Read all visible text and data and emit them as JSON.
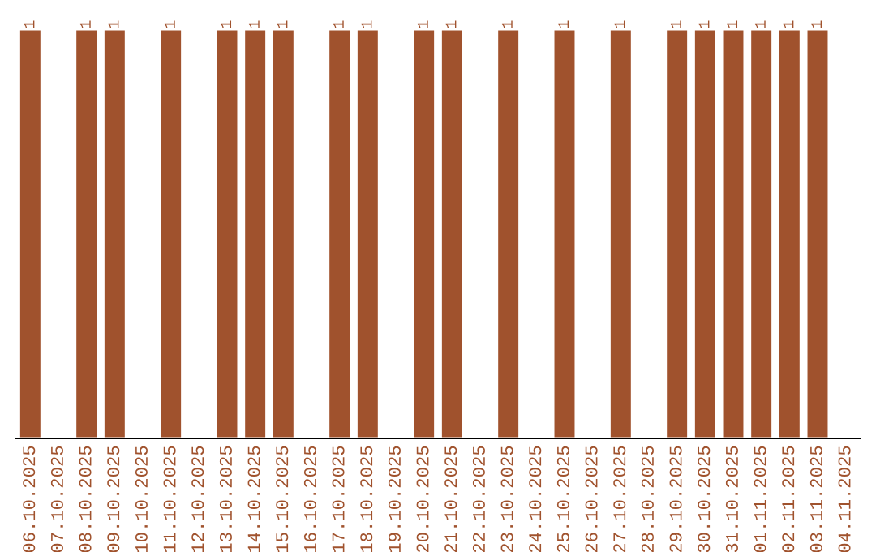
{
  "chart_data": {
    "type": "bar",
    "color": "#a0522d",
    "data_labels": true,
    "categories": [
      "06.10.2025",
      "07.10.2025",
      "08.10.2025",
      "09.10.2025",
      "10.10.2025",
      "11.10.2025",
      "12.10.2025",
      "13.10.2025",
      "14.10.2025",
      "15.10.2025",
      "16.10.2025",
      "17.10.2025",
      "18.10.2025",
      "19.10.2025",
      "20.10.2025",
      "21.10.2025",
      "22.10.2025",
      "23.10.2025",
      "24.10.2025",
      "25.10.2025",
      "26.10.2025",
      "27.10.2025",
      "28.10.2025",
      "29.10.2025",
      "30.10.2025",
      "31.10.2025",
      "01.11.2025",
      "02.11.2025",
      "03.11.2025",
      "04.11.2025"
    ],
    "values": [
      1,
      null,
      1,
      1,
      null,
      1,
      null,
      1,
      1,
      1,
      null,
      1,
      1,
      null,
      1,
      1,
      null,
      1,
      null,
      1,
      null,
      1,
      null,
      1,
      1,
      1,
      1,
      1,
      1,
      null
    ],
    "grid": false,
    "legend": false
  }
}
